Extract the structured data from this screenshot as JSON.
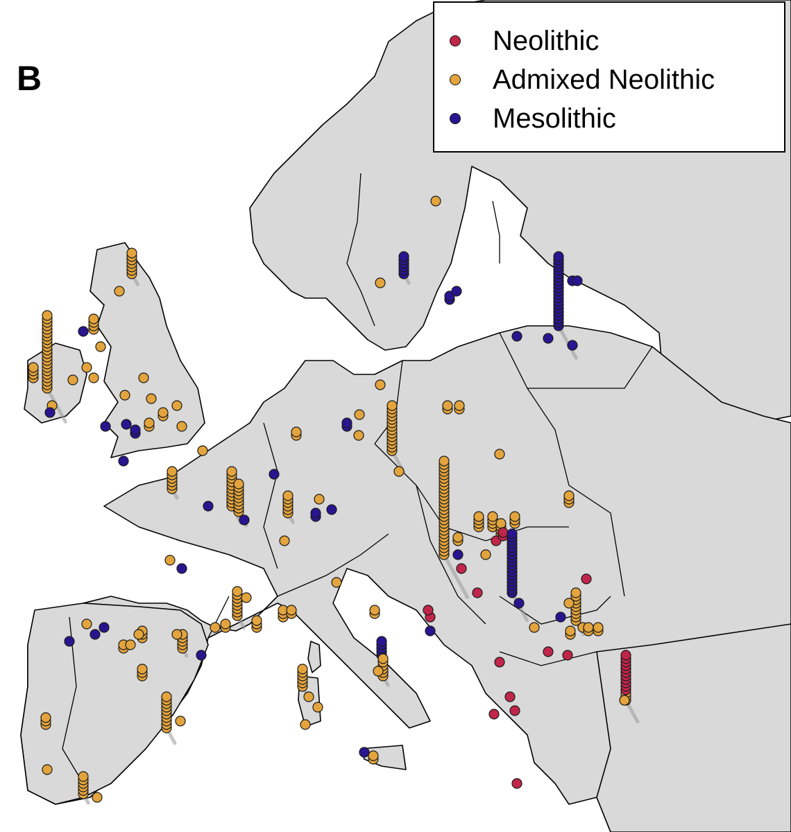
{
  "panel_label": "B",
  "colors": {
    "sea": "#ffffff",
    "land": "#d9d9d9",
    "border": "#000000",
    "neolithic": "#c0264a",
    "admixed": "#e3a43d",
    "mesolithic": "#2a1590"
  },
  "legend": [
    {
      "label": "Neolithic",
      "color": "#c0264a",
      "key": "neolithic"
    },
    {
      "label": "Admixed Neolithic",
      "color": "#e3a43d",
      "key": "admixed"
    },
    {
      "label": "Mesolithic",
      "color": "#2a1590",
      "key": "mesolithic"
    }
  ]
}
